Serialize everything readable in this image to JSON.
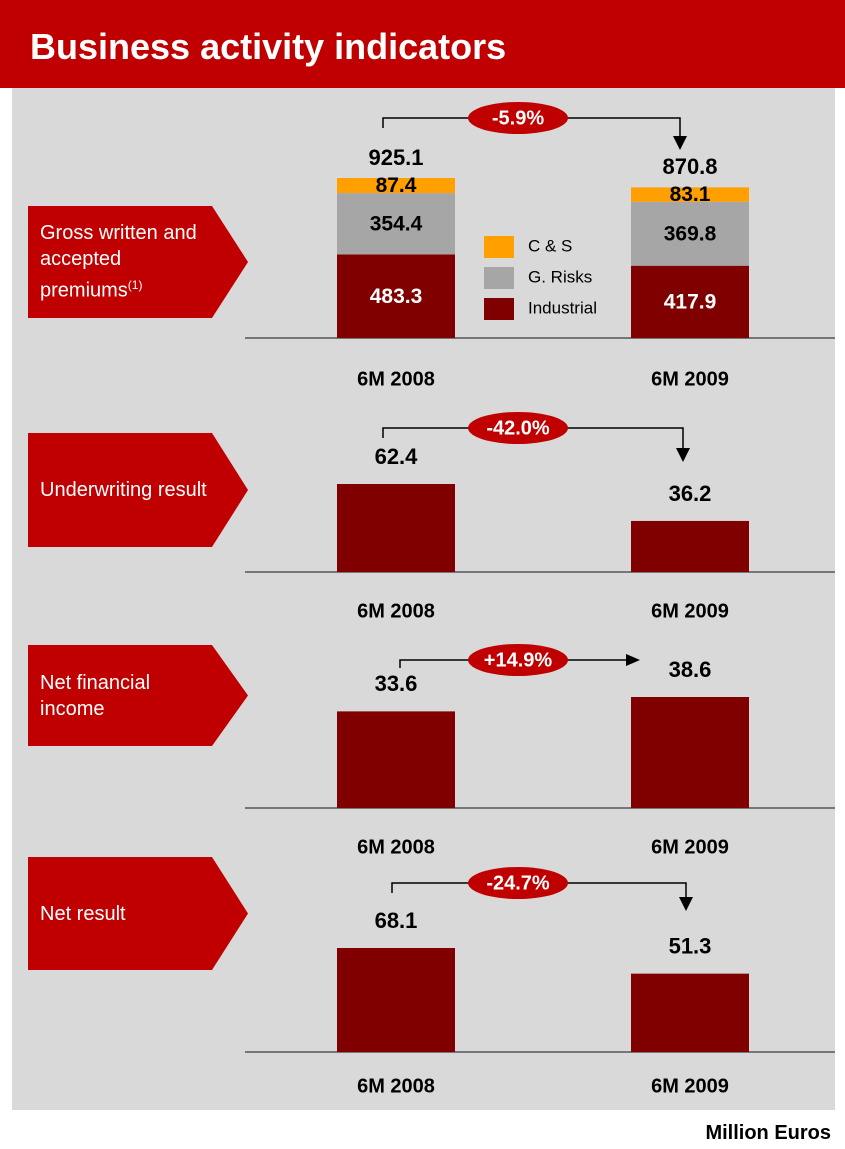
{
  "header": {
    "title": "Business activity indicators"
  },
  "chart_data": [
    {
      "type": "stacked_bar",
      "title": "Gross written and accepted premiums",
      "title_note": "(1)",
      "categories": [
        "6M 2008",
        "6M 2009"
      ],
      "series": [
        {
          "name": "Industrial",
          "color": "#800000",
          "values": [
            483.3,
            417.9
          ]
        },
        {
          "name": "G. Risks",
          "color": "#a6a6a6",
          "values": [
            354.4,
            369.8
          ]
        },
        {
          "name": "C & S",
          "color": "#ffa000",
          "values": [
            87.4,
            83.1
          ]
        }
      ],
      "totals": [
        925.1,
        870.8
      ],
      "change": "-5.9%"
    },
    {
      "type": "bar",
      "title": "Underwriting result",
      "categories": [
        "6M 2008",
        "6M 2009"
      ],
      "values": [
        62.4,
        36.2
      ],
      "color": "#800000",
      "change": "-42.0%"
    },
    {
      "type": "bar",
      "title": "Net financial income",
      "categories": [
        "6M 2008",
        "6M 2009"
      ],
      "values": [
        33.6,
        38.6
      ],
      "color": "#800000",
      "change": "+14.9%"
    },
    {
      "type": "bar",
      "title": "Net result",
      "categories": [
        "6M 2008",
        "6M 2009"
      ],
      "values": [
        68.1,
        51.3
      ],
      "color": "#800000",
      "change": "-24.7%"
    }
  ],
  "footer": {
    "unit": "Million Euros"
  }
}
